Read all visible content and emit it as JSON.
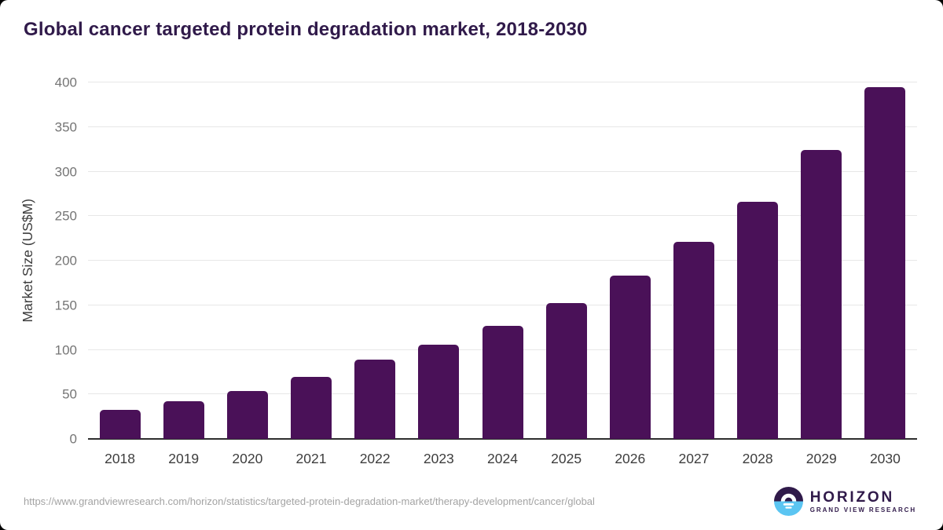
{
  "title": "Global cancer targeted protein degradation market, 2018-2030",
  "chart_data": {
    "type": "bar",
    "categories": [
      "2018",
      "2019",
      "2020",
      "2021",
      "2022",
      "2023",
      "2024",
      "2025",
      "2026",
      "2027",
      "2028",
      "2029",
      "2030"
    ],
    "values": [
      33,
      42,
      54,
      70,
      89,
      106,
      127,
      152,
      183,
      221,
      266,
      324,
      395
    ],
    "title": "Global cancer targeted protein degradation market, 2018-2030",
    "xlabel": "",
    "ylabel": "Market Size (US$M)",
    "ylim": [
      0,
      400
    ],
    "ytick_step": 50,
    "yticks": [
      0,
      50,
      100,
      150,
      200,
      250,
      300,
      350,
      400
    ],
    "grid": true,
    "legend": "none",
    "bar_color": "#4a1158"
  },
  "colors": {
    "bar": "#4a1158",
    "title_text": "#301a4a",
    "gridline": "#e7e7e7",
    "axis_line": "#2e2e2e",
    "y_tick_text": "#757575",
    "x_tick_text": "#3d3d3d",
    "footer_url_text": "#a3a3a3",
    "logo_purple": "#301a4a",
    "logo_blue": "#5bc5f2"
  },
  "footer": {
    "source_url": "https://www.grandviewresearch.com/horizon/statistics/targeted-protein-degradation-market/therapy-development/cancer/global",
    "logo": {
      "name": "HORIZON",
      "tagline": "GRAND VIEW RESEARCH"
    }
  }
}
